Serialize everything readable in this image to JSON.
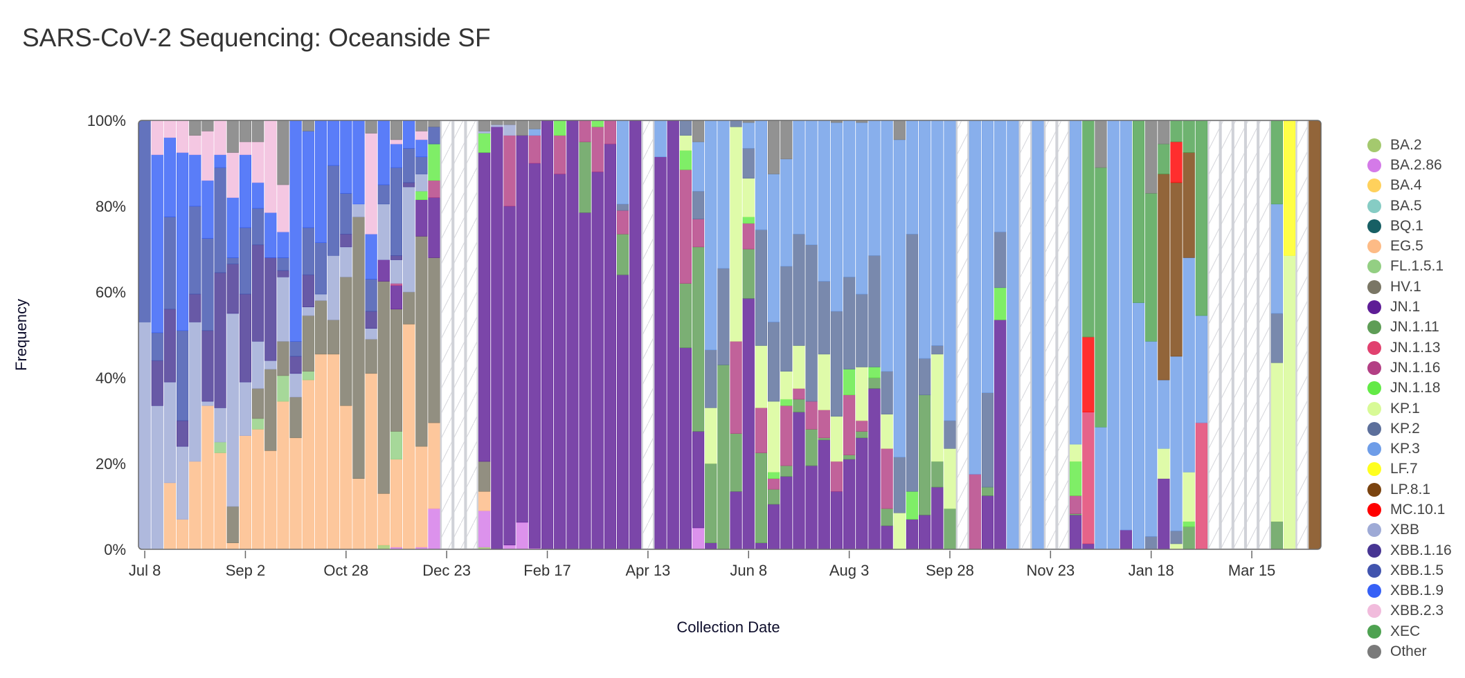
{
  "title": "SARS-CoV-2 Sequencing: Oceanside SF",
  "chart_data": {
    "type": "bar",
    "stacked": true,
    "title": "SARS-CoV-2 Sequencing: Oceanside SF",
    "xlabel": "Collection Date",
    "ylabel": "Frequency",
    "ylim": [
      0,
      100
    ],
    "y_ticks": [
      "0%",
      "20%",
      "40%",
      "60%",
      "80%",
      "100%"
    ],
    "x_ticks": [
      "Jul 8",
      "Sep 2",
      "Oct 28",
      "Dec 23",
      "Feb 17",
      "Apr 13",
      "Jun 8",
      "Aug 3",
      "Sep 28",
      "Nov 23",
      "Jan 18",
      "Mar 15"
    ],
    "legend_position": "right",
    "legend": [
      {
        "name": "BA.2",
        "color": "#a4c96e"
      },
      {
        "name": "BA.2.86",
        "color": "#d47ae8"
      },
      {
        "name": "BA.4",
        "color": "#ffd15c"
      },
      {
        "name": "BA.5",
        "color": "#86ccc4"
      },
      {
        "name": "BQ.1",
        "color": "#175f64"
      },
      {
        "name": "EG.5",
        "color": "#fdbb86"
      },
      {
        "name": "FL.1.5.1",
        "color": "#93cf83"
      },
      {
        "name": "HV.1",
        "color": "#7a7665"
      },
      {
        "name": "JN.1",
        "color": "#5e1d96"
      },
      {
        "name": "JN.1.11",
        "color": "#5e9d56"
      },
      {
        "name": "JN.1.13",
        "color": "#e1416f"
      },
      {
        "name": "JN.1.16",
        "color": "#b33f84"
      },
      {
        "name": "JN.1.18",
        "color": "#63ea46"
      },
      {
        "name": "KP.1",
        "color": "#d8fa96"
      },
      {
        "name": "KP.2",
        "color": "#5c6f9b"
      },
      {
        "name": "KP.3",
        "color": "#6e9de8"
      },
      {
        "name": "LF.7",
        "color": "#ffff1e"
      },
      {
        "name": "LP.8.1",
        "color": "#7a430f"
      },
      {
        "name": "MC.10.1",
        "color": "#ff0000"
      },
      {
        "name": "XBB",
        "color": "#9eaad6"
      },
      {
        "name": "XBB.1.16",
        "color": "#473593"
      },
      {
        "name": "XBB.1.5",
        "color": "#4154ae"
      },
      {
        "name": "XBB.1.9",
        "color": "#3660f6"
      },
      {
        "name": "XBB.2.3",
        "color": "#f1bbdc"
      },
      {
        "name": "XEC",
        "color": "#4ea251"
      },
      {
        "name": "Other",
        "color": "#7a7a7a"
      }
    ],
    "stack_order": [
      "BA.2",
      "BA.2.86",
      "EG.5",
      "FL.1.5.1",
      "HV.1",
      "JN.1",
      "JN.1.11",
      "JN.1.13",
      "JN.1.16",
      "JN.1.18",
      "KP.1",
      "KP.2",
      "KP.3",
      "LF.7",
      "LP.8.1",
      "MC.10.1",
      "XBB",
      "XBB.1.16",
      "XBB.1.5",
      "XBB.1.9",
      "XBB.2.3",
      "XEC",
      "Other"
    ],
    "bars": [
      {
        "week": "Jul 8",
        "values": {
          "XBB": 53,
          "XBB.1.5": 47
        }
      },
      {
        "week": "Jul 15",
        "values": {
          "XBB": 33.5,
          "XBB.1.16": 10.5,
          "XBB.1.5": 6.5,
          "XBB.1.9": 41.5,
          "XBB.2.3": 8
        }
      },
      {
        "week": "Jul 22",
        "values": {
          "EG.5": 15.5,
          "XBB": 23.5,
          "XBB.1.16": 17,
          "XBB.1.5": 21.5,
          "XBB.1.9": 18.5,
          "XBB.2.3": 4
        }
      },
      {
        "week": "Jul 29",
        "values": {
          "EG.5": 7,
          "XBB": 17,
          "XBB.1.16": 6,
          "XBB.1.5": 21,
          "XBB.1.9": 41.5,
          "XBB.2.3": 7.5
        }
      },
      {
        "week": "Aug 5",
        "values": {
          "EG.5": 20.5,
          "XBB": 32.5,
          "XBB.1.16": 6.5,
          "XBB.1.5": 20.5,
          "XBB.1.9": 12,
          "XBB.2.3": 4.5,
          "Other": 3.5
        }
      },
      {
        "week": "Aug 12",
        "values": {
          "EG.5": 33.5,
          "XBB": 1,
          "XBB.1.16": 16.5,
          "XBB.1.5": 21.5,
          "XBB.1.9": 13.5,
          "XBB.2.3": 11.5,
          "Other": 2.5
        }
      },
      {
        "week": "Aug 19",
        "values": {
          "EG.5": 22.5,
          "FL.1.5.1": 2.5,
          "XBB": 8,
          "XBB.1.16": 31.5,
          "XBB.1.5": 24.5,
          "XBB.1.9": 3,
          "XBB.2.3": 8
        }
      },
      {
        "week": "Aug 26",
        "values": {
          "EG.5": 1.5,
          "HV.1": 8.5,
          "XBB": 45,
          "XBB.1.16": 11.5,
          "XBB.1.5": 1.5,
          "XBB.1.9": 14,
          "XBB.2.3": 10.5,
          "Other": 7.5
        }
      },
      {
        "week": "Sep 2",
        "values": {
          "EG.5": 26.5,
          "XBB": 12.5,
          "XBB.1.16": 20.5,
          "XBB.1.5": 15.5,
          "XBB.1.9": 17,
          "XBB.2.3": 3,
          "Other": 5
        }
      },
      {
        "week": "Sep 9",
        "values": {
          "EG.5": 28,
          "FL.1.5.1": 2.5,
          "HV.1": 7,
          "XBB": 11,
          "XBB.1.16": 22.5,
          "XBB.1.5": 8.5,
          "XBB.1.9": 6,
          "XBB.2.3": 9.5,
          "Other": 5
        }
      },
      {
        "week": "Sep 16",
        "values": {
          "EG.5": 23,
          "HV.1": 19,
          "XBB": 2,
          "XBB.1.16": 24,
          "XBB.1.9": 10.5,
          "XBB.2.3": 21.5
        }
      },
      {
        "week": "Sep 23",
        "values": {
          "EG.5": 34.5,
          "FL.1.5.1": 6,
          "HV.1": 8,
          "XBB": 15,
          "XBB.1.16": 1.5,
          "XBB.1.5": 3,
          "XBB.1.9": 6,
          "XBB.2.3": 11,
          "Other": 15
        }
      },
      {
        "week": "Sep 30",
        "values": {
          "EG.5": 26,
          "HV.1": 9.5,
          "XBB": 5.5,
          "XBB.1.16": 4,
          "XBB.1.5": 3.5,
          "XBB.1.9": 51.5
        }
      },
      {
        "week": "Oct 7",
        "values": {
          "EG.5": 39.5,
          "FL.1.5.1": 2,
          "HV.1": 13,
          "XBB": 2,
          "XBB.1.16": 7.5,
          "XBB.1.5": 11,
          "XBB.1.9": 22.5,
          "Other": 2.5
        }
      },
      {
        "week": "Oct 14",
        "values": {
          "EG.5": 45.5,
          "HV.1": 12.5,
          "XBB": 1.5,
          "XBB.1.5": 12,
          "XBB.1.9": 28.5
        }
      },
      {
        "week": "Oct 21",
        "values": {
          "EG.5": 45.5,
          "HV.1": 8,
          "XBB": 15,
          "XBB.1.5": 21,
          "XBB.1.9": 10.5
        }
      },
      {
        "week": "Oct 28",
        "values": {
          "EG.5": 33.5,
          "HV.1": 30,
          "XBB": 7,
          "XBB.1.16": 3,
          "XBB.1.5": 9.5,
          "XBB.1.9": 17
        }
      },
      {
        "week": "Nov 4",
        "values": {
          "EG.5": 16.5,
          "HV.1": 61,
          "XBB": 3,
          "XBB.1.9": 19.5
        }
      },
      {
        "week": "Nov 11",
        "values": {
          "EG.5": 41,
          "HV.1": 8,
          "XBB": 2.5,
          "XBB.1.16": 4,
          "XBB.1.5": 7.5,
          "XBB.1.9": 10.5,
          "XBB.2.3": 23.5,
          "Other": 3
        }
      },
      {
        "week": "Nov 18",
        "values": {
          "BA.2": 1,
          "EG.5": 12,
          "HV.1": 49.5,
          "JN.1": 5,
          "XBB": 13,
          "XBB.1.5": 4.5,
          "XBB.1.9": 15
        }
      },
      {
        "week": "Nov 25",
        "values": {
          "BA.2.86": 0.5,
          "EG.5": 20.5,
          "FL.1.5.1": 6.5,
          "HV.1": 28.5,
          "JN.1": 5.5,
          "JN.1.16": 0.5,
          "XBB": 5.5,
          "XBB.1.16": 1,
          "XBB.1.5": 20.5,
          "XBB.1.9": 5.5,
          "XBB.2.3": 1,
          "Other": 4.5
        }
      },
      {
        "week": "Dec 2",
        "values": {
          "EG.5": 52.5,
          "HV.1": 7.5,
          "XBB": 24.5,
          "XBB.1.16": 1,
          "XBB.1.5": 8,
          "XBB.1.9": 6.5
        }
      },
      {
        "week": "Dec 9",
        "values": {
          "BA.2.86": 0.5,
          "EG.5": 23.5,
          "HV.1": 49,
          "JN.1": 8.5,
          "JN.1.18": 2,
          "XBB": 4,
          "XBB.1.5": 4,
          "XBB.1.9": 4,
          "XBB.2.3": 2,
          "Other": 2.5
        }
      },
      {
        "week": "Dec 16",
        "values": {
          "BA.2.86": 9.5,
          "EG.5": 20,
          "HV.1": 38.5,
          "JN.1": 14,
          "JN.1.16": 4,
          "JN.1.18": 8.5,
          "XBB.1.5": 4,
          "Other": 1.5
        }
      },
      {
        "week": "Dec 23",
        "no_data": true
      },
      {
        "week": "Dec 30",
        "no_data": true
      },
      {
        "week": "Jan 6",
        "no_data": true
      },
      {
        "week": "Jan 13",
        "values": {
          "BA.2": 0.5,
          "BA.2.86": 8.5,
          "EG.5": 4.5,
          "HV.1": 7,
          "JN.1": 72,
          "JN.1.18": 4.5,
          "XBB": 0.5,
          "Other": 2.5
        }
      },
      {
        "week": "Jan 20",
        "values": {
          "JN.1": 98.5,
          "XBB": 0.5,
          "Other": 1
        }
      },
      {
        "week": "Jan 27",
        "values": {
          "BA.2.86": 1,
          "JN.1": 79,
          "JN.1.16": 16.5,
          "XBB": 2.5,
          "Other": 1
        }
      },
      {
        "week": "Feb 3",
        "values": {
          "BA.2.86": 6.3,
          "JN.1": 90.2,
          "Other": 3.5
        }
      },
      {
        "week": "Feb 10",
        "values": {
          "BA.2.86": 0.3,
          "JN.1": 89.7,
          "JN.1.16": 6.5,
          "KP.3": 1.5,
          "Other": 2
        }
      },
      {
        "week": "Feb 17",
        "values": {
          "JN.1": 100
        }
      },
      {
        "week": "Feb 24",
        "values": {
          "JN.1": 87.5,
          "JN.1.16": 9,
          "JN.1.18": 3.5
        }
      },
      {
        "week": "Mar 2",
        "values": {
          "JN.1": 100
        }
      },
      {
        "week": "Mar 9",
        "values": {
          "JN.1": 78.5,
          "JN.1.11": 16.5,
          "JN.1.16": 5
        }
      },
      {
        "week": "Mar 16",
        "values": {
          "JN.1": 88,
          "JN.1.16": 10.5,
          "JN.1.18": 1.5
        }
      },
      {
        "week": "Mar 23",
        "values": {
          "JN.1": 94.5,
          "JN.1.16": 5.5
        }
      },
      {
        "week": "Mar 30",
        "values": {
          "JN.1": 64,
          "JN.1.11": 9.5,
          "JN.1.16": 5.5,
          "KP.2": 1.5,
          "KP.3": 19.5
        }
      },
      {
        "week": "Apr 6",
        "values": {
          "JN.1": 100
        }
      },
      {
        "week": "Apr 13",
        "no_data": true
      },
      {
        "week": "Apr 20",
        "values": {
          "JN.1": 91.5,
          "KP.3": 8.5
        }
      },
      {
        "week": "Apr 27",
        "values": {
          "JN.1": 100
        }
      },
      {
        "week": "May 4",
        "values": {
          "JN.1": 47,
          "JN.1.11": 15,
          "JN.1.16": 26.5,
          "JN.1.18": 4.5,
          "KP.1": 3.5,
          "KP.2": 3.5
        }
      },
      {
        "week": "May 11",
        "values": {
          "BA.2.86": 5,
          "JN.1": 22.5,
          "JN.1.11": 43,
          "JN.1.16": 6.5,
          "KP.2": 6.5,
          "KP.3": 11.5,
          "Other": 5
        }
      },
      {
        "week": "May 18",
        "values": {
          "JN.1": 1.5,
          "JN.1.11": 18.5,
          "KP.1": 13,
          "KP.2": 13.5,
          "KP.3": 53.5
        }
      },
      {
        "week": "May 25",
        "values": {
          "JN.1.11": 43,
          "KP.2": 22.5,
          "KP.3": 34.5
        }
      },
      {
        "week": "Jun 1",
        "values": {
          "JN.1": 13.5,
          "JN.1.11": 13.5,
          "JN.1.16": 21.5,
          "KP.1": 50,
          "KP.2": 1.5
        }
      },
      {
        "week": "Jun 8",
        "values": {
          "JN.1": 58.5,
          "JN.1.11": 11.5,
          "JN.1.16": 6,
          "JN.1.18": 1.5,
          "KP.1": 9,
          "KP.2": 7,
          "KP.3": 6,
          "Other": 0.5
        }
      },
      {
        "week": "Jun 15",
        "values": {
          "JN.1": 1.5,
          "JN.1.11": 21,
          "JN.1.16": 10.5,
          "KP.1": 14.5,
          "KP.2": 27,
          "KP.3": 25.5
        }
      },
      {
        "week": "Jun 22",
        "values": {
          "JN.1": 10.5,
          "JN.1.11": 3.5,
          "JN.1.16": 2.5,
          "JN.1.18": 1.5,
          "KP.1": 16.5,
          "KP.2": 18.5,
          "KP.3": 34.5,
          "Other": 12.5
        }
      },
      {
        "week": "Jun 29",
        "values": {
          "JN.1": 17,
          "JN.1.11": 2.5,
          "JN.1.16": 14,
          "JN.1.18": 1.5,
          "KP.1": 6.5,
          "KP.2": 24.5,
          "KP.3": 25,
          "Other": 9
        }
      },
      {
        "week": "Jul 6",
        "values": {
          "JN.1": 32,
          "JN.1.11": 3,
          "JN.1.16": 2.5,
          "KP.1": 10,
          "KP.2": 26,
          "KP.3": 26.5
        }
      },
      {
        "week": "Jul 13",
        "values": {
          "JN.1": 19.5,
          "JN.1.11": 8.5,
          "JN.1.16": 6.5,
          "KP.2": 36.5,
          "KP.3": 29
        }
      },
      {
        "week": "Jul 20",
        "values": {
          "JN.1": 25.5,
          "JN.1.11": 0.5,
          "JN.1.16": 6.5,
          "KP.1": 13,
          "KP.2": 17,
          "KP.3": 37.5
        }
      },
      {
        "week": "Jul 27",
        "values": {
          "JN.1": 13.5,
          "JN.1.16": 7,
          "KP.1": 10.5,
          "KP.2": 24.5,
          "KP.3": 44,
          "Other": 0.5
        }
      },
      {
        "week": "Aug 3",
        "values": {
          "JN.1": 21,
          "JN.1.11": 1,
          "JN.1.16": 14,
          "JN.1.18": 6,
          "KP.2": 21.5,
          "KP.3": 36.5
        }
      },
      {
        "week": "Aug 10",
        "values": {
          "JN.1": 26,
          "JN.1.11": 1.5,
          "JN.1.16": 2.5,
          "KP.1": 12.5,
          "KP.2": 17,
          "KP.3": 40,
          "Other": 0.5
        }
      },
      {
        "week": "Aug 17",
        "values": {
          "JN.1": 37.5,
          "JN.1.11": 2.5,
          "JN.1.18": 2.5,
          "KP.2": 26,
          "KP.3": 31.5
        }
      },
      {
        "week": "Aug 24",
        "values": {
          "JN.1": 5.5,
          "JN.1.11": 4,
          "JN.1.16": 14,
          "KP.1": 8,
          "KP.2": 10,
          "KP.3": 58.5
        }
      },
      {
        "week": "Aug 31",
        "values": {
          "KP.1": 8.5,
          "KP.2": 13,
          "KP.3": 74,
          "Other": 4.5
        }
      },
      {
        "week": "Sep 7",
        "values": {
          "JN.1": 7,
          "JN.1.18": 6.5,
          "KP.2": 60,
          "KP.3": 26.5
        }
      },
      {
        "week": "Sep 14",
        "values": {
          "JN.1": 8,
          "JN.1.11": 28,
          "KP.2": 8.5,
          "KP.3": 55.5
        }
      },
      {
        "week": "Sep 21",
        "values": {
          "JN.1": 14.5,
          "JN.1.11": 6,
          "KP.1": 25,
          "KP.2": 2,
          "KP.3": 52.5
        }
      },
      {
        "week": "Sep 28",
        "values": {
          "JN.1.11": 9.5,
          "KP.1": 14,
          "KP.2": 6.5,
          "KP.3": 70
        }
      },
      {
        "week": "Oct 5",
        "no_data": true
      },
      {
        "week": "Oct 12",
        "values": {
          "JN.1.16": 17.5,
          "KP.3": 82.5
        }
      },
      {
        "week": "Oct 19",
        "values": {
          "JN.1": 12.5,
          "JN.1.11": 2,
          "KP.2": 22,
          "KP.3": 63.5
        }
      },
      {
        "week": "Oct 26",
        "values": {
          "JN.1": 53.5,
          "JN.1.18": 7.5,
          "KP.2": 13,
          "KP.3": 26
        }
      },
      {
        "week": "Nov 2",
        "values": {
          "KP.3": 100
        }
      },
      {
        "week": "Nov 9",
        "no_data": true
      },
      {
        "week": "Nov 16",
        "values": {
          "KP.3": 100
        }
      },
      {
        "week": "Nov 23",
        "no_data": true
      },
      {
        "week": "Nov 30",
        "no_data": true
      },
      {
        "week": "Dec 7",
        "values": {
          "JN.1": 8,
          "JN.1.11": 0.3,
          "JN.1.16": 4.2,
          "JN.1.18": 8,
          "KP.1": 4,
          "KP.3": 75.5
        }
      },
      {
        "week": "Dec 14",
        "values": {
          "JN.1": 1.3,
          "JN.1.13": 30.7,
          "MC.10.1": 17.5,
          "XEC": 50.5
        }
      },
      {
        "week": "Dec 21",
        "values": {
          "KP.3": 28.5,
          "XEC": 60.5,
          "Other": 11
        }
      },
      {
        "week": "Dec 28",
        "values": {
          "KP.3": 100
        }
      },
      {
        "week": "Jan 4",
        "values": {
          "JN.1": 4.5,
          "KP.3": 95.5
        }
      },
      {
        "week": "Jan 11",
        "values": {
          "KP.3": 57.5,
          "XEC": 42.5
        }
      },
      {
        "week": "Jan 18",
        "values": {
          "KP.2": 3,
          "KP.3": 45.5,
          "XEC": 34.5,
          "Other": 17
        }
      },
      {
        "week": "Jan 25",
        "values": {
          "JN.1": 16.5,
          "KP.1": 7,
          "KP.3": 16,
          "LP.8.1": 48,
          "XEC": 7,
          "Other": 5.5
        }
      },
      {
        "week": "Feb 1",
        "values": {
          "KP.1": 1.3,
          "KP.2": 3,
          "KP.3": 40.7,
          "LP.8.1": 40.5,
          "MC.10.1": 9.5,
          "XEC": 5
        }
      },
      {
        "week": "Feb 8",
        "values": {
          "JN.1.11": 5.3,
          "JN.1.18": 1.2,
          "KP.1": 11.5,
          "KP.3": 50,
          "LP.8.1": 24.5,
          "XEC": 7.5
        }
      },
      {
        "week": "Feb 15",
        "values": {
          "JN.1.13": 29.5,
          "KP.3": 25,
          "XEC": 45.5
        }
      },
      {
        "week": "Feb 22",
        "no_data": true
      },
      {
        "week": "Mar 1",
        "no_data": true
      },
      {
        "week": "Mar 8",
        "no_data": true
      },
      {
        "week": "Mar 15",
        "no_data": true
      },
      {
        "week": "Mar 22",
        "no_data": true
      },
      {
        "week": "Mar 29",
        "values": {
          "JN.1.11": 6.5,
          "KP.1": 37,
          "KP.2": 11.5,
          "KP.3": 25.5,
          "XEC": 19.5
        }
      },
      {
        "week": "Apr 5",
        "values": {
          "KP.1": 68.5,
          "LF.7": 31.5
        }
      },
      {
        "week": "Apr 12",
        "no_data": true
      },
      {
        "week": "Apr 19",
        "values": {
          "LP.8.1": 100
        }
      }
    ]
  }
}
